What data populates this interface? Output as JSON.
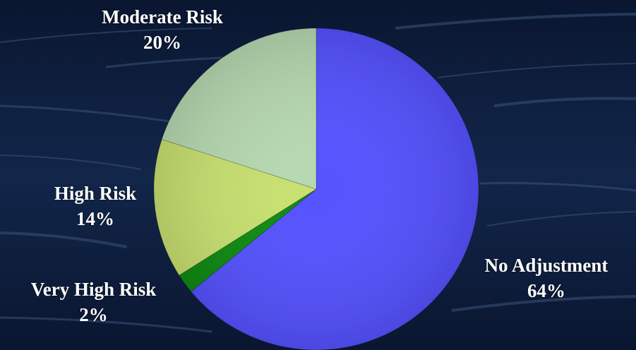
{
  "chart_data": {
    "type": "pie",
    "title": "",
    "slices": [
      {
        "label": "No Adjustment",
        "value": 64,
        "display": "64%",
        "color": "#5552ff"
      },
      {
        "label": "Very High Risk",
        "value": 2,
        "display": "2%",
        "color": "#0e8a12"
      },
      {
        "label": "High Risk",
        "value": 14,
        "display": "14%",
        "color": "#c8e070"
      },
      {
        "label": "Moderate Risk",
        "value": 20,
        "display": "20%",
        "color": "#b6d8b0"
      }
    ],
    "start_angle_deg": 0,
    "direction": "clockwise"
  },
  "background": {
    "color": "#0b1a33",
    "streak_color": "#3a5478"
  }
}
